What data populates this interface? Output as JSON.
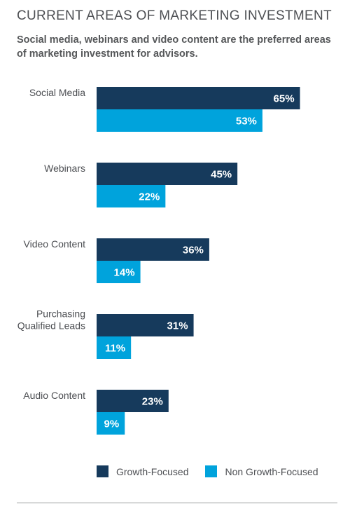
{
  "title": "CURRENT AREAS OF MARKETING INVESTMENT",
  "subtitle": "Social media, webinars and video content are the preferred areas of marketing investment for advisors.",
  "colors": {
    "growth": "#163a5c",
    "non_growth": "#00a3dc",
    "label_text": "#4d4f53",
    "value_text": "#ffffff"
  },
  "chart_data": {
    "type": "bar",
    "orientation": "horizontal",
    "categories": [
      [
        "Social Media"
      ],
      [
        "Webinars"
      ],
      [
        "Video Content"
      ],
      [
        "Purchasing",
        "Qualified Leads"
      ],
      [
        "Audio Content"
      ]
    ],
    "series": [
      {
        "name": "Growth-Focused",
        "values": [
          65,
          45,
          36,
          31,
          23
        ],
        "labels": [
          "65%",
          "45%",
          "36%",
          "31%",
          "23%"
        ]
      },
      {
        "name": "Non Growth-Focused",
        "values": [
          53,
          22,
          14,
          11,
          9
        ],
        "labels": [
          "53%",
          "22%",
          "14%",
          "11%",
          "9%"
        ]
      }
    ],
    "xlim": [
      0,
      100
    ],
    "grid": false,
    "legend_position": "bottom"
  }
}
